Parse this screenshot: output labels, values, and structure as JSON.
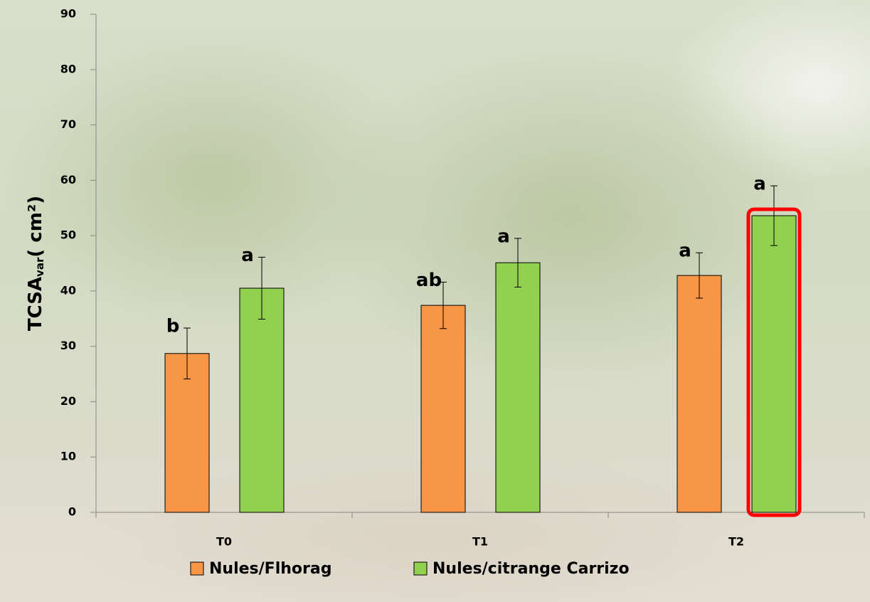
{
  "chart_data": {
    "type": "bar",
    "ylabel": {
      "text": "TCSA",
      "subscript": "var",
      "unit": "( cm²)"
    },
    "categories": [
      "T0",
      "T1",
      "T2"
    ],
    "series": [
      {
        "name": "Nules/Flhorag",
        "color": "#f79646",
        "values": [
          28.7,
          37.4,
          42.8
        ],
        "errors": [
          4.6,
          4.2,
          4.1
        ],
        "letters": [
          "b",
          "ab",
          "a"
        ]
      },
      {
        "name": "Nules/citrange Carrizo",
        "color": "#92d050",
        "values": [
          40.5,
          45.1,
          53.6
        ],
        "errors": [
          5.6,
          4.4,
          5.4
        ],
        "letters": [
          "a",
          "a",
          "a"
        ]
      }
    ],
    "ylim": [
      0,
      90
    ],
    "yticks": [
      0,
      10,
      20,
      30,
      40,
      50,
      60,
      70,
      80,
      90
    ],
    "highlight": [
      1,
      2
    ],
    "highlight_color": "#ff0000"
  }
}
